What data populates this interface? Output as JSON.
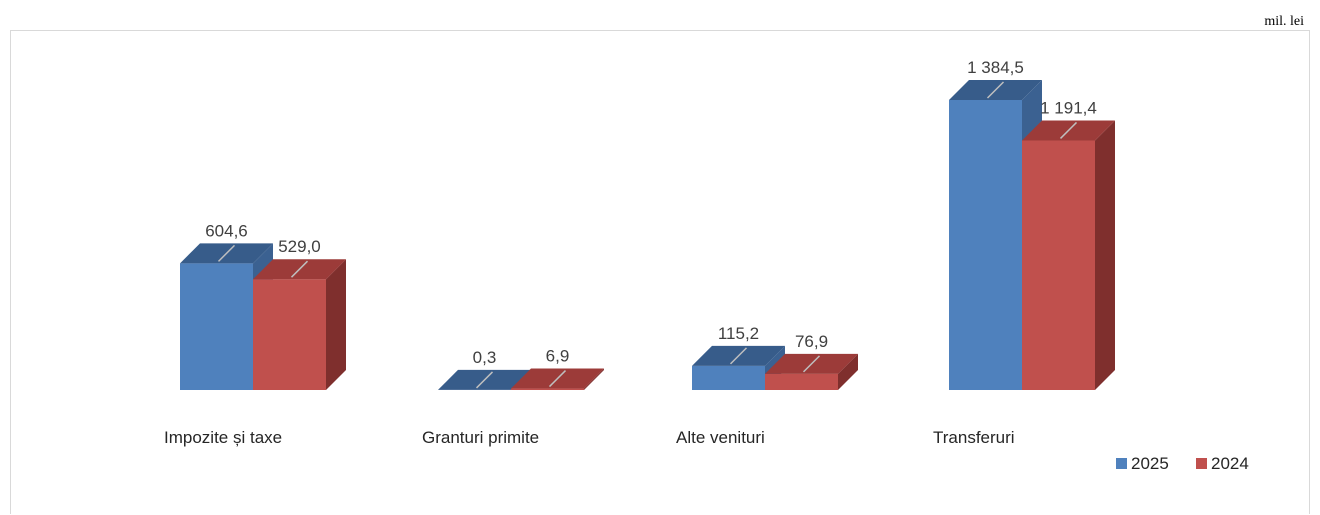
{
  "unit_label": "mil. lei",
  "chart_data": {
    "type": "bar",
    "title": "",
    "unit": "mil. lei",
    "categories": [
      "Impozite și taxe",
      "Granturi primite",
      "Alte venituri",
      "Transferuri"
    ],
    "series": [
      {
        "name": "2025",
        "values": [
          604.6,
          0.3,
          115.2,
          1384.5
        ],
        "labels": [
          "604,6",
          "0,3",
          "115,2",
          "1 384,5"
        ],
        "color": "#4f81bd",
        "side_color": "#3b6191",
        "top_color": "#375c8a"
      },
      {
        "name": "2024",
        "values": [
          529.0,
          6.9,
          76.9,
          1191.4
        ],
        "labels": [
          "529,0",
          "6,9",
          "76,9",
          "1 191,4"
        ],
        "color": "#c0504d",
        "side_color": "#7f2f2d",
        "top_color": "#9c3b39"
      }
    ],
    "ylim": [
      0,
      1384.5
    ],
    "grid": false,
    "legend_position": "bottom-right"
  }
}
